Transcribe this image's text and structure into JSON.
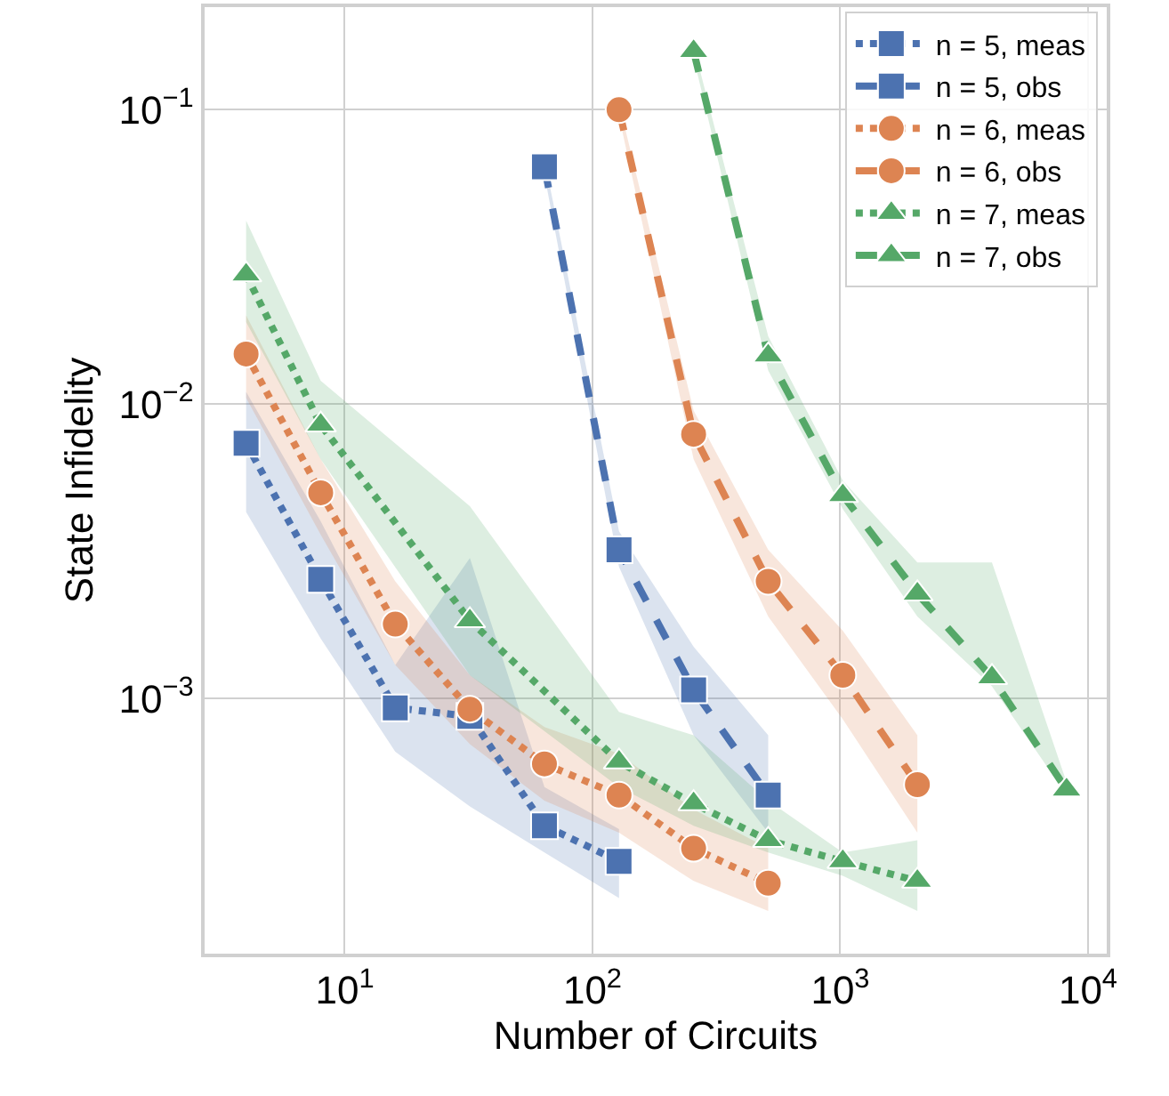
{
  "chart_data": {
    "type": "line",
    "xlabel": "Number of Circuits",
    "ylabel": "State Infidelity",
    "log": "xy",
    "grid": true,
    "legend": "top right",
    "xlim": [
      2.72,
      11900
    ],
    "ylim": [
      0.000136,
      0.223
    ],
    "xticks": [
      {
        "value": 10,
        "label": "10$^{1}$"
      },
      {
        "value": 100,
        "label": "10$^{2}$"
      },
      {
        "value": 1000,
        "label": "10$^{3}$"
      },
      {
        "value": 10000,
        "label": "10$^{4}$"
      }
    ],
    "yticks": [
      {
        "value": 0.001,
        "label": "10$^{−3}$"
      },
      {
        "value": 0.01,
        "label": "10$^{−2}$"
      },
      {
        "value": 0.1,
        "label": "10$^{−1}$"
      }
    ],
    "series": [
      {
        "name": "n = 5, meas",
        "color": "#4c72b0",
        "marker": "square",
        "line_style": "dotted",
        "x": [
          4,
          8,
          16,
          32,
          64,
          128
        ],
        "values": [
          0.00736,
          0.00254,
          0.00093,
          0.00087,
          0.00037,
          0.00028
        ],
        "lower": [
          0.0043,
          0.0016,
          0.00066,
          0.00043,
          0.0003,
          0.00021
        ],
        "upper": [
          0.011,
          0.004,
          0.0013,
          0.003,
          0.0005,
          0.00036
        ]
      },
      {
        "name": "n = 5, obs",
        "color": "#4c72b0",
        "marker": "square",
        "line_style": "dashed",
        "x": [
          64,
          128,
          256,
          512
        ],
        "values": [
          0.064,
          0.0032,
          0.00107,
          0.00047
        ],
        "lower": [
          0.06,
          0.0028,
          0.00075,
          0.00035
        ],
        "upper": [
          0.068,
          0.0037,
          0.0015,
          0.00075
        ]
      },
      {
        "name": "n = 6, meas",
        "color": "#dd8452",
        "marker": "circle",
        "line_style": "dotted",
        "x": [
          4,
          8,
          16,
          32,
          64,
          128,
          256,
          512
        ],
        "values": [
          0.0148,
          0.005,
          0.00179,
          0.00092,
          0.0006,
          0.00047,
          0.00031,
          0.000236
        ],
        "lower": [
          0.0105,
          0.0036,
          0.0013,
          0.0007,
          0.00045,
          0.00035,
          0.00024,
          0.00019
        ],
        "upper": [
          0.02,
          0.0065,
          0.0025,
          0.0012,
          0.0008,
          0.00065,
          0.00042,
          0.00031
        ]
      },
      {
        "name": "n = 6, obs",
        "color": "#dd8452",
        "marker": "circle",
        "line_style": "dashed",
        "x": [
          128,
          256,
          512,
          1024,
          2048
        ],
        "values": [
          0.1,
          0.0079,
          0.0025,
          0.0012,
          0.00051
        ],
        "lower": [
          0.095,
          0.0065,
          0.0019,
          0.00085,
          0.00035
        ],
        "upper": [
          0.105,
          0.0095,
          0.0032,
          0.0017,
          0.00075
        ]
      },
      {
        "name": "n = 7, meas",
        "color": "#55a868",
        "marker": "triangle",
        "line_style": "dotted",
        "x": [
          4,
          8,
          32,
          128,
          256,
          512,
          1024,
          2048
        ],
        "values": [
          0.0275,
          0.0085,
          0.00184,
          0.00061,
          0.00044,
          0.00033,
          0.00028,
          0.00024
        ],
        "lower": [
          0.019,
          0.0065,
          0.0012,
          0.0005,
          0.00037,
          0.0003,
          0.00025,
          0.00019
        ],
        "upper": [
          0.042,
          0.012,
          0.0045,
          0.0009,
          0.00075,
          0.00045,
          0.0003,
          0.00033
        ]
      },
      {
        "name": "n = 7, obs",
        "color": "#55a868",
        "marker": "triangle",
        "line_style": "dashed",
        "x": [
          256,
          512,
          1024,
          2048,
          4096,
          8192
        ],
        "values": [
          0.158,
          0.0146,
          0.0049,
          0.00227,
          0.00118,
          0.00049
        ],
        "lower": [
          0.15,
          0.013,
          0.0044,
          0.0019,
          0.0011,
          0.00047
        ],
        "upper": [
          0.165,
          0.017,
          0.0055,
          0.0029,
          0.0029,
          0.00052
        ]
      }
    ]
  }
}
